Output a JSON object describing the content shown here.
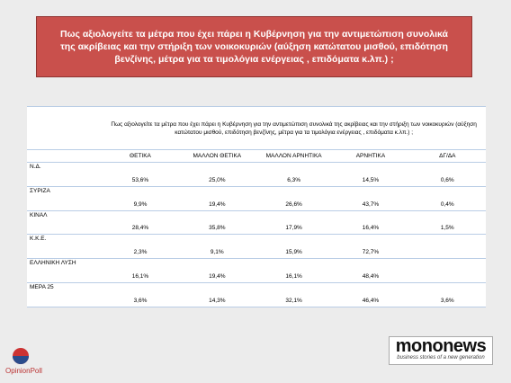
{
  "header": {
    "title": "Πως αξιολογείτε τα μέτρα που έχει πάρει η Κυβέρνηση για την αντιμετώπιση συνολικά της ακρίβειας και την στήριξη των νοικοκυριών (αύξηση κατώτατου μισθού, επιδότηση βενζίνης, μέτρα για τα τιμολόγια ενέργειας , επιδόματα κ.λπ.) ;"
  },
  "table": {
    "question": "Πως αξιολογείτε τα μέτρα που έχει πάρει η Κυβέρνηση για την αντιμετώπιση συνολικά της ακρίβειας και την στήριξη των νοικοκυριών (αύξηση κατώτατου μισθού, επιδότηση βενζίνης, μέτρα για τα τιμολόγια ενέργειας , επιδόματα κ.λπ.) ;",
    "columns": [
      "ΘΕΤΙΚΑ",
      "ΜΑΛΛΟΝ ΘΕΤΙΚΑ",
      "ΜΑΛΛΟΝ ΑΡΝΗΤΙΚΑ",
      "ΑΡΝΗΤΙΚΑ",
      "ΔΓ/ΔΑ"
    ],
    "rows": [
      {
        "label": "Ν.Δ.",
        "values": [
          "53,6%",
          "25,0%",
          "6,3%",
          "14,5%",
          "0,6%"
        ]
      },
      {
        "label": "ΣΥΡΙΖΑ",
        "values": [
          "9,9%",
          "19,4%",
          "26,6%",
          "43,7%",
          "0,4%"
        ]
      },
      {
        "label": "ΚΙΝΑΛ",
        "values": [
          "28,4%",
          "35,8%",
          "17,9%",
          "16,4%",
          "1,5%"
        ]
      },
      {
        "label": "Κ.Κ.Ε.",
        "values": [
          "2,3%",
          "9,1%",
          "15,9%",
          "72,7%",
          null
        ]
      },
      {
        "label": "ΕΛΛΗΝΙΚΗ ΛΥΣΗ",
        "values": [
          "16,1%",
          "19,4%",
          "16,1%",
          "48,4%",
          null
        ]
      },
      {
        "label": "ΜΕΡΑ 25",
        "values": [
          "3,6%",
          "14,3%",
          "32,1%",
          "46,4%",
          "3,6%"
        ]
      }
    ]
  },
  "logos": {
    "brand": "mononews",
    "tagline": "business stories of a new generation",
    "pollster": "OpinionPoll"
  }
}
